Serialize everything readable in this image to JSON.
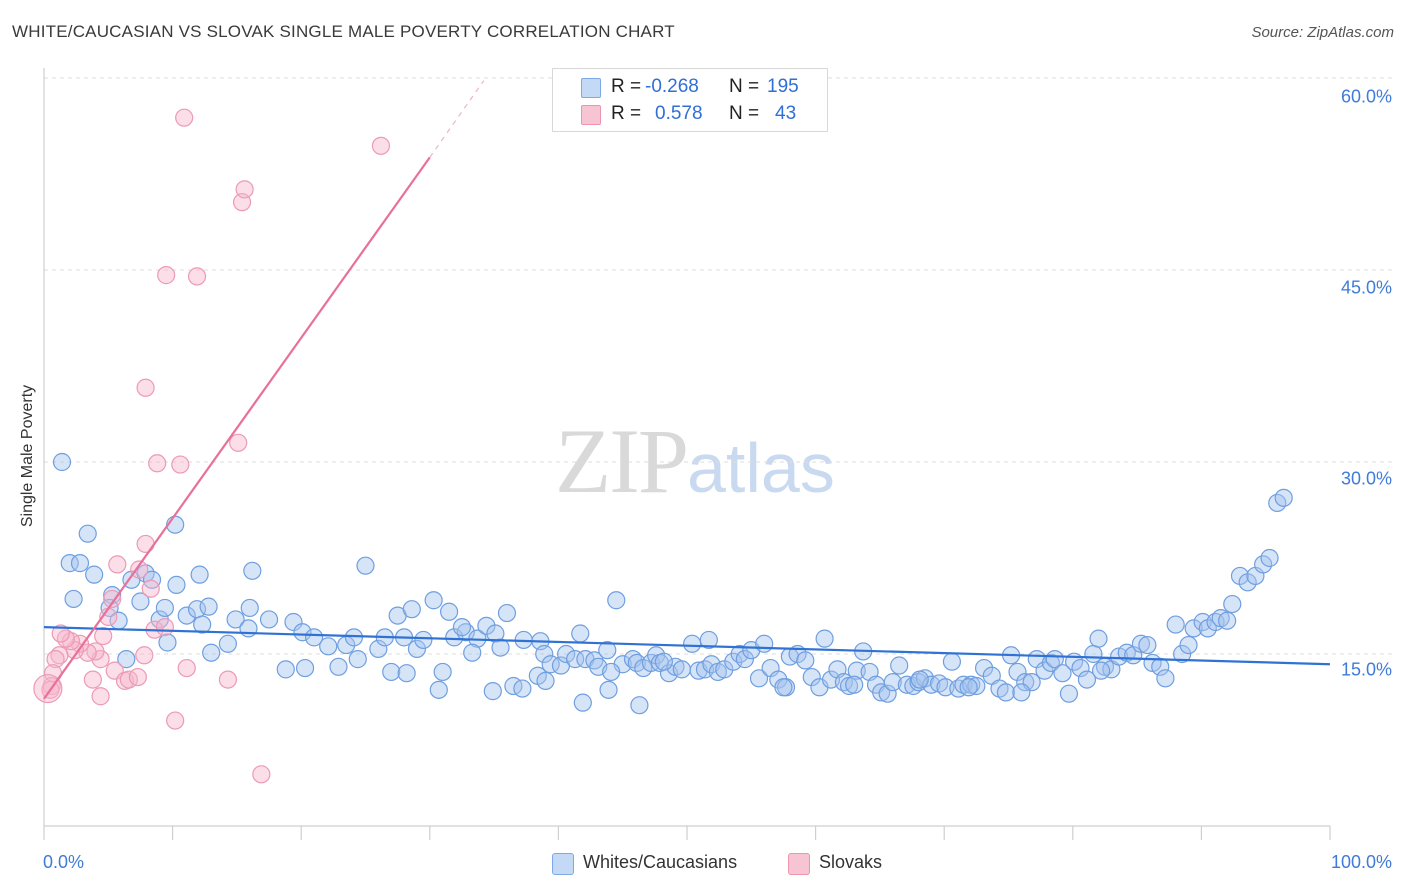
{
  "header": {
    "title": "WHITE/CAUCASIAN VS SLOVAK SINGLE MALE POVERTY CORRELATION CHART",
    "source": "Source: ZipAtlas.com"
  },
  "watermark": {
    "zip": "ZIP",
    "atlas": "atlas"
  },
  "stats": {
    "r_label": "R =",
    "n_label": "N =",
    "rows": [
      {
        "r": "-0.268",
        "n": "195"
      },
      {
        "r": "0.578",
        "n": "43"
      }
    ]
  },
  "legend": {
    "items": [
      {
        "label": "Whites/Caucasians"
      },
      {
        "label": "Slovaks"
      }
    ]
  },
  "chart_data": {
    "type": "scatter",
    "title": "WHITE/CAUCASIAN VS SLOVAK SINGLE MALE POVERTY CORRELATION CHART",
    "xlabel": "",
    "ylabel": "Single Male Poverty",
    "x_tick_labels": [
      "0.0%",
      "100.0%"
    ],
    "y_tick_labels": [
      "15.0%",
      "30.0%",
      "45.0%",
      "60.0%"
    ],
    "y_ticks": [
      15,
      30,
      45,
      60
    ],
    "xlim": [
      0,
      100
    ],
    "ylim": [
      0,
      63
    ],
    "grid": "horizontal dashed",
    "legend_position": "bottom-center",
    "colors": {
      "whites": "#3f7bd8",
      "slovaks": "#e8709a",
      "axis_text": "#3f7bd8"
    },
    "series": [
      {
        "name": "Whites/Caucasians",
        "r": -0.268,
        "n": 195,
        "trend": {
          "x0": 0,
          "y0": 17.1,
          "x1": 100,
          "y1": 14.2
        },
        "points": [
          [
            1.4,
            30.0
          ],
          [
            3.4,
            24.4
          ],
          [
            2.0,
            22.1
          ],
          [
            2.8,
            22.1
          ],
          [
            3.9,
            21.2
          ],
          [
            2.3,
            19.3
          ],
          [
            5.3,
            19.6
          ],
          [
            6.8,
            20.8
          ],
          [
            7.9,
            21.3
          ],
          [
            8.4,
            20.8
          ],
          [
            10.3,
            20.4
          ],
          [
            12.1,
            21.2
          ],
          [
            16.2,
            21.5
          ],
          [
            25.0,
            21.9
          ],
          [
            10.2,
            25.1
          ],
          [
            5.1,
            18.6
          ],
          [
            5.8,
            17.6
          ],
          [
            7.5,
            19.1
          ],
          [
            9.0,
            17.7
          ],
          [
            9.4,
            18.6
          ],
          [
            11.1,
            18.0
          ],
          [
            11.9,
            18.5
          ],
          [
            12.8,
            18.7
          ],
          [
            14.9,
            17.7
          ],
          [
            15.9,
            17.0
          ],
          [
            16.0,
            18.6
          ],
          [
            17.5,
            17.7
          ],
          [
            19.4,
            17.5
          ],
          [
            20.1,
            16.7
          ],
          [
            21.0,
            16.3
          ],
          [
            22.1,
            15.6
          ],
          [
            23.5,
            15.7
          ],
          [
            24.1,
            16.3
          ],
          [
            26.0,
            15.4
          ],
          [
            26.5,
            16.3
          ],
          [
            27.5,
            18.0
          ],
          [
            28.0,
            16.3
          ],
          [
            28.6,
            18.5
          ],
          [
            29.0,
            15.4
          ],
          [
            29.5,
            16.1
          ],
          [
            30.3,
            19.2
          ],
          [
            31.0,
            13.6
          ],
          [
            31.5,
            18.3
          ],
          [
            31.9,
            16.3
          ],
          [
            32.8,
            16.7
          ],
          [
            32.5,
            17.1
          ],
          [
            33.7,
            16.2
          ],
          [
            34.4,
            17.2
          ],
          [
            35.1,
            16.6
          ],
          [
            35.5,
            15.5
          ],
          [
            36.0,
            18.2
          ],
          [
            36.5,
            12.5
          ],
          [
            37.3,
            16.1
          ],
          [
            38.6,
            16.0
          ],
          [
            38.9,
            15.0
          ],
          [
            39.4,
            14.2
          ],
          [
            40.2,
            14.1
          ],
          [
            40.6,
            15.0
          ],
          [
            41.3,
            14.6
          ],
          [
            41.7,
            16.6
          ],
          [
            42.1,
            14.6
          ],
          [
            42.8,
            14.5
          ],
          [
            43.1,
            14.0
          ],
          [
            43.8,
            15.3
          ],
          [
            44.5,
            19.2
          ],
          [
            45.0,
            14.2
          ],
          [
            45.8,
            14.6
          ],
          [
            46.1,
            14.3
          ],
          [
            46.6,
            13.9
          ],
          [
            47.2,
            14.3
          ],
          [
            47.6,
            14.9
          ],
          [
            47.9,
            14.3
          ],
          [
            48.6,
            13.5
          ],
          [
            49.1,
            14.0
          ],
          [
            49.6,
            13.8
          ],
          [
            50.4,
            15.8
          ],
          [
            50.9,
            13.7
          ],
          [
            51.4,
            13.8
          ],
          [
            51.9,
            14.2
          ],
          [
            52.4,
            13.6
          ],
          [
            52.9,
            13.8
          ],
          [
            53.6,
            14.4
          ],
          [
            54.1,
            15.0
          ],
          [
            54.5,
            14.6
          ],
          [
            55.0,
            15.3
          ],
          [
            55.6,
            13.1
          ],
          [
            56.0,
            15.8
          ],
          [
            56.5,
            13.9
          ],
          [
            57.1,
            13.0
          ],
          [
            57.7,
            12.4
          ],
          [
            58.0,
            14.8
          ],
          [
            58.6,
            15.0
          ],
          [
            59.2,
            14.5
          ],
          [
            59.7,
            13.2
          ],
          [
            60.3,
            12.4
          ],
          [
            60.7,
            16.2
          ],
          [
            61.2,
            13.0
          ],
          [
            61.7,
            13.8
          ],
          [
            62.2,
            12.8
          ],
          [
            62.6,
            12.5
          ],
          [
            63.2,
            13.7
          ],
          [
            63.7,
            15.2
          ],
          [
            64.2,
            13.6
          ],
          [
            64.7,
            12.6
          ],
          [
            65.1,
            12.0
          ],
          [
            65.6,
            11.9
          ],
          [
            66.0,
            12.8
          ],
          [
            66.5,
            14.1
          ],
          [
            67.1,
            12.6
          ],
          [
            67.6,
            12.5
          ],
          [
            68.0,
            12.8
          ],
          [
            68.5,
            13.1
          ],
          [
            69.0,
            12.6
          ],
          [
            69.6,
            12.7
          ],
          [
            70.1,
            12.4
          ],
          [
            70.6,
            14.4
          ],
          [
            71.1,
            12.3
          ],
          [
            71.5,
            12.6
          ],
          [
            72.1,
            12.6
          ],
          [
            72.5,
            12.5
          ],
          [
            73.1,
            13.9
          ],
          [
            73.7,
            13.3
          ],
          [
            74.3,
            12.3
          ],
          [
            74.8,
            12.0
          ],
          [
            75.2,
            14.9
          ],
          [
            75.7,
            13.6
          ],
          [
            76.3,
            12.8
          ],
          [
            76.8,
            12.8
          ],
          [
            77.2,
            14.6
          ],
          [
            77.8,
            13.7
          ],
          [
            78.3,
            14.3
          ],
          [
            78.6,
            14.6
          ],
          [
            79.2,
            13.5
          ],
          [
            79.7,
            11.9
          ],
          [
            80.1,
            14.4
          ],
          [
            80.6,
            13.9
          ],
          [
            81.1,
            13.0
          ],
          [
            81.6,
            15.0
          ],
          [
            82.0,
            16.2
          ],
          [
            82.5,
            14.0
          ],
          [
            83.0,
            13.8
          ],
          [
            83.6,
            14.8
          ],
          [
            84.2,
            15.1
          ],
          [
            84.7,
            14.9
          ],
          [
            85.3,
            15.8
          ],
          [
            85.8,
            15.7
          ],
          [
            86.2,
            14.3
          ],
          [
            86.8,
            14.0
          ],
          [
            87.2,
            13.1
          ],
          [
            88.0,
            17.3
          ],
          [
            88.5,
            15.0
          ],
          [
            89.0,
            15.7
          ],
          [
            89.4,
            17.0
          ],
          [
            90.1,
            17.5
          ],
          [
            90.5,
            17.0
          ],
          [
            91.1,
            17.5
          ],
          [
            91.5,
            17.8
          ],
          [
            92.0,
            17.6
          ],
          [
            92.4,
            18.9
          ],
          [
            93.0,
            21.1
          ],
          [
            93.6,
            20.6
          ],
          [
            94.2,
            21.1
          ],
          [
            94.8,
            22.0
          ],
          [
            95.3,
            22.5
          ],
          [
            95.9,
            26.8
          ],
          [
            96.4,
            27.2
          ],
          [
            37.2,
            12.3
          ],
          [
            38.4,
            13.3
          ],
          [
            43.9,
            12.2
          ],
          [
            46.3,
            11.0
          ],
          [
            13.0,
            15.1
          ],
          [
            14.3,
            15.8
          ],
          [
            18.8,
            13.8
          ],
          [
            20.3,
            13.9
          ],
          [
            22.9,
            14.0
          ],
          [
            24.4,
            14.6
          ],
          [
            27.0,
            13.6
          ],
          [
            30.7,
            12.2
          ],
          [
            33.3,
            15.1
          ],
          [
            34.9,
            12.1
          ],
          [
            39.0,
            12.9
          ],
          [
            44.1,
            13.6
          ],
          [
            48.2,
            14.4
          ],
          [
            9.6,
            15.9
          ],
          [
            6.4,
            14.6
          ],
          [
            41.9,
            11.2
          ],
          [
            51.7,
            16.1
          ],
          [
            57.5,
            12.4
          ],
          [
            63.0,
            12.6
          ],
          [
            71.9,
            12.4
          ],
          [
            76.0,
            12.0
          ],
          [
            82.2,
            13.7
          ],
          [
            12.3,
            17.3
          ],
          [
            28.2,
            13.5
          ],
          [
            68.1,
            13.0
          ]
        ]
      },
      {
        "name": "Slovaks",
        "r": 0.578,
        "n": 43,
        "trend": {
          "x0": 0,
          "y0": 11.5,
          "x1": 30,
          "y1": 53.8
        },
        "trend_dashed": {
          "x0": 30,
          "x1": 34.2,
          "y1": 59.8
        },
        "points": [
          [
            10.9,
            56.9
          ],
          [
            26.2,
            54.7
          ],
          [
            15.4,
            50.3
          ],
          [
            15.6,
            51.3
          ],
          [
            9.5,
            44.6
          ],
          [
            11.9,
            44.5
          ],
          [
            7.9,
            35.8
          ],
          [
            15.1,
            31.5
          ],
          [
            8.8,
            29.9
          ],
          [
            10.6,
            29.8
          ],
          [
            7.9,
            23.6
          ],
          [
            5.7,
            22.0
          ],
          [
            7.4,
            21.6
          ],
          [
            5.3,
            19.3
          ],
          [
            8.3,
            20.1
          ],
          [
            5.0,
            17.9
          ],
          [
            4.6,
            16.4
          ],
          [
            4.4,
            14.6
          ],
          [
            4.0,
            15.2
          ],
          [
            3.4,
            15.1
          ],
          [
            2.8,
            15.8
          ],
          [
            2.4,
            15.3
          ],
          [
            2.1,
            16.0
          ],
          [
            1.7,
            16.2
          ],
          [
            1.3,
            16.6
          ],
          [
            1.2,
            14.9
          ],
          [
            0.9,
            14.6
          ],
          [
            0.7,
            13.5
          ],
          [
            0.6,
            12.5
          ],
          [
            0.5,
            12.2
          ],
          [
            3.8,
            13.0
          ],
          [
            4.4,
            11.7
          ],
          [
            5.5,
            13.7
          ],
          [
            6.3,
            12.9
          ],
          [
            6.6,
            13.0
          ],
          [
            7.3,
            13.2
          ],
          [
            7.8,
            14.9
          ],
          [
            8.6,
            16.9
          ],
          [
            9.4,
            17.1
          ],
          [
            11.1,
            13.9
          ],
          [
            14.3,
            13.0
          ],
          [
            10.2,
            9.8
          ],
          [
            16.9,
            5.6
          ]
        ]
      }
    ]
  }
}
